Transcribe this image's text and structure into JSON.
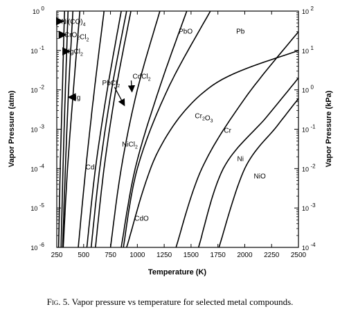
{
  "chart_data": {
    "type": "line",
    "xlabel": "Temperature (K)",
    "ylabel_left": "Vapor Pressure (atm)",
    "ylabel_right": "Vapor Pressure (kPa)",
    "x_range": [
      250,
      2500
    ],
    "x_ticks": [
      250,
      500,
      750,
      1000,
      1250,
      1500,
      1750,
      2000,
      2250,
      2500
    ],
    "y_scale": "log",
    "y_range_atm": [
      1e-06,
      1
    ],
    "y_ticks_left": [
      {
        "value": 1e-06,
        "base": "10",
        "exp": "-6"
      },
      {
        "value": 1e-05,
        "base": "10",
        "exp": "-5"
      },
      {
        "value": 0.0001,
        "base": "10",
        "exp": "-4"
      },
      {
        "value": 0.001,
        "base": "10",
        "exp": "-3"
      },
      {
        "value": 0.01,
        "base": "10",
        "exp": "-2"
      },
      {
        "value": 0.1,
        "base": "10",
        "exp": "-1"
      },
      {
        "value": 1,
        "base": "10",
        "exp": "0"
      }
    ],
    "y_ticks_right": [
      {
        "value": 1e-06,
        "base": "10",
        "exp": "-4"
      },
      {
        "value": 1e-05,
        "base": "10",
        "exp": "-3"
      },
      {
        "value": 0.0001,
        "base": "10",
        "exp": "-2"
      },
      {
        "value": 0.001,
        "base": "10",
        "exp": "-1"
      },
      {
        "value": 0.01,
        "base": "10",
        "exp": "0"
      },
      {
        "value": 0.1,
        "base": "10",
        "exp": "1"
      },
      {
        "value": 1,
        "base": "10",
        "exp": "2"
      }
    ],
    "series": [
      {
        "name": "Ni(CO)4",
        "points": [
          [
            267,
            1e-06
          ],
          [
            282,
            0.0001
          ],
          [
            302,
            0.01
          ],
          [
            322,
            1
          ]
        ]
      },
      {
        "name": "CrO2Cl2",
        "points": [
          [
            290,
            1e-06
          ],
          [
            308,
            0.0001
          ],
          [
            330,
            0.01
          ],
          [
            355,
            1
          ]
        ]
      },
      {
        "name": "HgCl2",
        "points": [
          [
            305,
            1e-06
          ],
          [
            330,
            0.0001
          ],
          [
            360,
            0.01
          ],
          [
            400,
            1
          ]
        ]
      },
      {
        "name": "Hg",
        "points": [
          [
            310,
            1e-06
          ],
          [
            350,
            0.0001
          ],
          [
            405,
            0.01
          ],
          [
            465,
            1
          ]
        ]
      },
      {
        "name": "Cd",
        "points": [
          [
            450,
            1e-06
          ],
          [
            520,
            0.0001
          ],
          [
            600,
            0.01
          ],
          [
            690,
            1
          ]
        ]
      },
      {
        "name": "PbCl2",
        "points": [
          [
            530,
            1e-06
          ],
          [
            610,
            0.0001
          ],
          [
            720,
            0.01
          ],
          [
            850,
            1
          ]
        ]
      },
      {
        "name": "NiCl2",
        "points": [
          [
            570,
            1e-06
          ],
          [
            650,
            0.0001
          ],
          [
            760,
            0.01
          ],
          [
            900,
            1
          ]
        ]
      },
      {
        "name": "CdCl2",
        "points": [
          [
            610,
            1e-06
          ],
          [
            690,
            0.0001
          ],
          [
            800,
            0.01
          ],
          [
            940,
            1
          ]
        ]
      },
      {
        "name": "CdO",
        "points": [
          [
            750,
            1e-06
          ],
          [
            850,
            0.0001
          ],
          [
            1000,
            0.01
          ],
          [
            1210,
            1
          ]
        ]
      },
      {
        "name": "PbO",
        "points": [
          [
            850,
            1e-06
          ],
          [
            980,
            0.0001
          ],
          [
            1200,
            0.01
          ],
          [
            1460,
            1
          ]
        ]
      },
      {
        "name": "Pb",
        "points": [
          [
            870,
            1e-06
          ],
          [
            1000,
            0.0001
          ],
          [
            1280,
            0.01
          ],
          [
            1680,
            1
          ]
        ]
      },
      {
        "name": "Cr2O3",
        "points": [
          [
            900,
            1e-06
          ],
          [
            1200,
            0.0003
          ],
          [
            1700,
            0.013
          ],
          [
            2500,
            0.1
          ]
        ]
      },
      {
        "name": "Cr",
        "points": [
          [
            1360,
            1e-06
          ],
          [
            1600,
            0.0001
          ],
          [
            2000,
            0.006
          ],
          [
            2500,
            0.3
          ]
        ]
      },
      {
        "name": "Ni",
        "points": [
          [
            1570,
            1e-06
          ],
          [
            1800,
            0.0001
          ],
          [
            2200,
            0.002
          ],
          [
            2500,
            0.02
          ]
        ]
      },
      {
        "name": "NiO",
        "points": [
          [
            1760,
            1e-06
          ],
          [
            2000,
            0.0001
          ],
          [
            2300,
            0.0012
          ],
          [
            2500,
            0.006
          ]
        ]
      }
    ],
    "labels": [
      {
        "series": "Ni(CO)4",
        "main": "Ni(CO)",
        "sub": "4",
        "tail": "",
        "lx": 405,
        "ly": 0.55,
        "arrow": [
          310,
          0.55
        ]
      },
      {
        "series": "CrO2Cl2",
        "main": "CrO",
        "sub": "2",
        "tail": "Cl",
        "sub2": "2",
        "lx": 435,
        "ly": 0.25,
        "arrow": [
          335,
          0.25
        ]
      },
      {
        "series": "HgCl2",
        "main": "HgCl",
        "sub": "2",
        "tail": "",
        "lx": 410,
        "ly": 0.095,
        "arrow": [
          370,
          0.095
        ]
      },
      {
        "series": "Hg",
        "main": "Hg",
        "sub": "",
        "tail": "",
        "lx": 430,
        "ly": 0.0065,
        "arrow": [
          360,
          0.0065
        ]
      },
      {
        "series": "Cd",
        "main": "Cd",
        "sub": "",
        "tail": "",
        "lx": 560,
        "ly": 0.00011,
        "arrow": null
      },
      {
        "series": "PbCl2",
        "main": "PbCl",
        "sub": "2",
        "tail": "",
        "lx": 755,
        "ly": 0.015,
        "arrow": [
          880,
          0.004
        ]
      },
      {
        "series": "CdCl2",
        "main": "CdCl",
        "sub": "2",
        "tail": "",
        "lx": 1040,
        "ly": 0.022,
        "arrow": [
          950,
          0.009
        ]
      },
      {
        "series": "NiCl2",
        "main": "NiCl",
        "sub": "2",
        "tail": "",
        "lx": 930,
        "ly": 0.00042,
        "arrow": null
      },
      {
        "series": "CdO",
        "main": "CdO",
        "sub": "",
        "tail": "",
        "lx": 1040,
        "ly": 5.5e-06,
        "arrow": null
      },
      {
        "series": "PbO",
        "main": "PbO",
        "sub": "",
        "tail": "",
        "lx": 1450,
        "ly": 0.31,
        "arrow": null
      },
      {
        "series": "Pb",
        "main": "Pb",
        "sub": "",
        "tail": "",
        "lx": 1960,
        "ly": 0.31,
        "arrow": null
      },
      {
        "series": "Cr2O3",
        "main": "Cr",
        "sub": "2",
        "tail": "O",
        "sub2": "3",
        "lx": 1620,
        "ly": 0.0022,
        "arrow": null
      },
      {
        "series": "Cr",
        "main": "Cr",
        "sub": "",
        "tail": "",
        "lx": 1840,
        "ly": 0.00095,
        "arrow": null
      },
      {
        "series": "Ni",
        "main": "Ni",
        "sub": "",
        "tail": "",
        "lx": 1960,
        "ly": 0.00018,
        "arrow": null
      },
      {
        "series": "NiO",
        "main": "NiO",
        "sub": "",
        "tail": "",
        "lx": 2140,
        "ly": 6.5e-05,
        "arrow": null
      }
    ],
    "grid": false,
    "legend": "none"
  },
  "caption": {
    "label": "Fig. 5.",
    "text": " Vapor pressure vs temperature for selected metal compounds."
  }
}
